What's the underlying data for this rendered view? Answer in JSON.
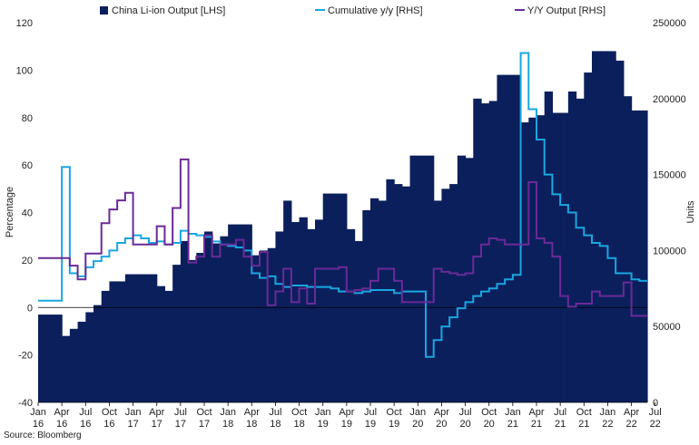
{
  "chart_data": {
    "type": "bar+line",
    "legend": [
      {
        "label": "China Li-ion Output [LHS]",
        "color": "#0b1f5c",
        "kind": "box"
      },
      {
        "label": "Cumulative y/y [RHS]",
        "color": "#1aa6e0",
        "kind": "line"
      },
      {
        "label": "Y/Y Output [RHS]",
        "color": "#6a2a97",
        "kind": "line"
      }
    ],
    "legend_position": "top",
    "ylabel_left": "Percentage",
    "ylabel_right": "Units",
    "ylim_left": [
      -40,
      120
    ],
    "yticks_left": [
      "-40",
      "-20",
      "0",
      "20",
      "40",
      "60",
      "80",
      "100",
      "120"
    ],
    "ylim_right": [
      0,
      250000
    ],
    "yticks_right": [
      "0",
      "50000",
      "100000",
      "150000",
      "200000",
      "250000"
    ],
    "x_tick_labels": [
      [
        "Jan",
        "16"
      ],
      [
        "Apr",
        "16"
      ],
      [
        "Jul",
        "16"
      ],
      [
        "Oct",
        "16"
      ],
      [
        "Jan",
        "17"
      ],
      [
        "Apr",
        "17"
      ],
      [
        "Jul",
        "17"
      ],
      [
        "Oct",
        "17"
      ],
      [
        "Jan",
        "18"
      ],
      [
        "Apr",
        "18"
      ],
      [
        "Jul",
        "18"
      ],
      [
        "Oct",
        "18"
      ],
      [
        "Jan",
        "19"
      ],
      [
        "Apr",
        "19"
      ],
      [
        "Jul",
        "19"
      ],
      [
        "Oct",
        "19"
      ],
      [
        "Jan",
        "20"
      ],
      [
        "Apr",
        "20"
      ],
      [
        "Jul",
        "20"
      ],
      [
        "Oct",
        "20"
      ],
      [
        "Jan",
        "21"
      ],
      [
        "Apr",
        "21"
      ],
      [
        "Jul",
        "21"
      ],
      [
        "Oct",
        "21"
      ],
      [
        "Jan",
        "22"
      ],
      [
        "Apr",
        "22"
      ],
      [
        "Jul",
        "22"
      ]
    ],
    "start_month": "Jan 2016",
    "series": [
      {
        "name": "China Li-ion Output [LHS]",
        "axis": "left",
        "style": "step-area",
        "color": "#0b1f5c",
        "values": [
          -3,
          -3,
          -3,
          -12,
          -9,
          -6,
          -2,
          1,
          7,
          11,
          11,
          14,
          14,
          14,
          14,
          9,
          7,
          18,
          28,
          20,
          23,
          32,
          27,
          30,
          35,
          35,
          35,
          22,
          24,
          25,
          32,
          45,
          36,
          38,
          33,
          37,
          48,
          48,
          48,
          33,
          28,
          41,
          46,
          45,
          54,
          52,
          51,
          64,
          64,
          64,
          45,
          50,
          52,
          64,
          63,
          88,
          86,
          87,
          98,
          98,
          98,
          78,
          80,
          81,
          91,
          82,
          82,
          91,
          88,
          99,
          108,
          108,
          108,
          104,
          89,
          83,
          83
        ]
      },
      {
        "name": "Cumulative y/y [RHS]",
        "axis": "right",
        "style": "step-line",
        "color": "#1aa6e0",
        "values": [
          67000,
          67000,
          67000,
          155000,
          85000,
          83000,
          89000,
          93000,
          96000,
          100000,
          105000,
          108000,
          110000,
          108000,
          105000,
          106000,
          104000,
          105000,
          113000,
          111000,
          110000,
          109000,
          106000,
          104000,
          103000,
          102000,
          100000,
          85000,
          82000,
          83000,
          78000,
          76000,
          77000,
          77000,
          76000,
          76000,
          76000,
          75000,
          73000,
          73000,
          72000,
          73000,
          74000,
          74000,
          74000,
          72000,
          73000,
          73000,
          73000,
          30000,
          41000,
          50000,
          56000,
          62000,
          66000,
          70000,
          73000,
          75000,
          78000,
          81000,
          84000,
          230000,
          193000,
          173000,
          150000,
          137000,
          130000,
          125000,
          115000,
          110000,
          105000,
          103000,
          95000,
          85000,
          85000,
          81000,
          80000
        ]
      },
      {
        "name": "Y/Y Output [RHS]",
        "axis": "right",
        "style": "step-line",
        "color": "#6a2a97",
        "values": [
          95000,
          95000,
          95000,
          95000,
          90000,
          81000,
          98000,
          98000,
          118000,
          127000,
          133000,
          138000,
          104000,
          104000,
          104000,
          116000,
          104000,
          128000,
          160000,
          92000,
          96000,
          110000,
          96000,
          104000,
          104000,
          107000,
          96000,
          90000,
          99000,
          64000,
          73000,
          88000,
          66000,
          75000,
          65000,
          88000,
          88000,
          88000,
          89000,
          73000,
          74000,
          75000,
          80000,
          88000,
          88000,
          80000,
          66000,
          66000,
          66000,
          66000,
          88000,
          86000,
          85000,
          84000,
          85000,
          96000,
          104000,
          108000,
          107000,
          104000,
          104000,
          104000,
          145000,
          108000,
          105000,
          96000,
          70000,
          63000,
          65000,
          65000,
          73000,
          70000,
          70000,
          70000,
          79000,
          57000,
          57000
        ]
      }
    ]
  },
  "source": "Source: Bloomberg"
}
